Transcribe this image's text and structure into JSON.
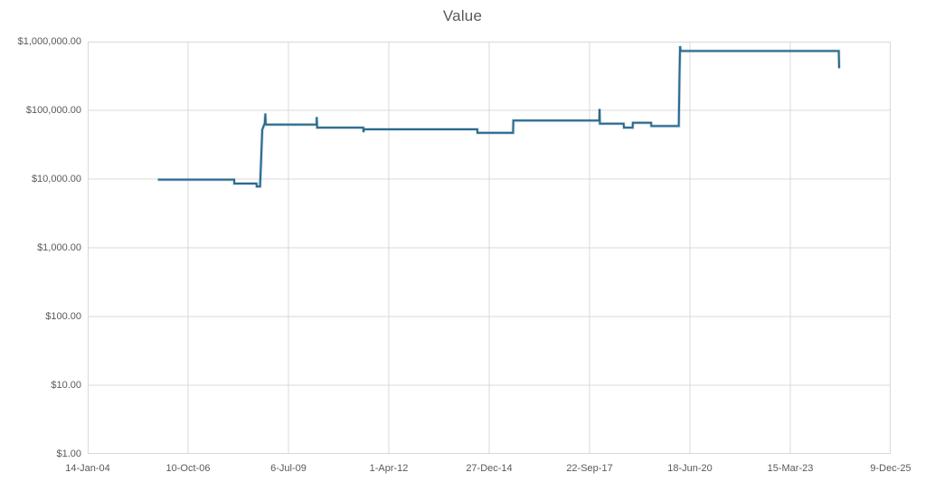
{
  "title": "Value",
  "colors": {
    "line": "#2b6a8d",
    "line_halo": "#8fb4c9",
    "grid": "#d9d9d9",
    "plot_border": "#d9d9d9",
    "text": "#595959",
    "background": "#ffffff"
  },
  "chart_data": {
    "type": "line",
    "title": "Value",
    "xlabel": "",
    "ylabel": "",
    "legend": "none",
    "grid": true,
    "y_scale": "log10",
    "ylim": [
      1,
      1000000
    ],
    "y_ticks_top_to_bottom": [
      "$1,000,000.00",
      "$100,000.00",
      "$10,000.00",
      "$1,000.00",
      "$100.00",
      "$10.00",
      "$1.00"
    ],
    "y_tick_values_top_to_bottom": [
      1000000,
      100000,
      10000,
      1000,
      100,
      10,
      1
    ],
    "x_axis_min": "2004-01-14",
    "x_axis_max": "2025-12-09",
    "x_ticks": [
      "14-Jan-04",
      "10-Oct-06",
      "6-Jul-09",
      "1-Apr-12",
      "27-Dec-14",
      "22-Sep-17",
      "18-Jun-20",
      "15-Mar-23",
      "9-Dec-25"
    ],
    "series": [
      {
        "name": "Value",
        "points": [
          [
            "2005-12-13",
            9800
          ],
          [
            "2008-01-12",
            9800
          ],
          [
            "2008-01-14",
            8600
          ],
          [
            "2008-08-22",
            8600
          ],
          [
            "2008-08-24",
            7800
          ],
          [
            "2008-09-26",
            7800
          ],
          [
            "2008-10-08",
            21000
          ],
          [
            "2008-10-18",
            52000
          ],
          [
            "2008-11-12",
            65000
          ],
          [
            "2008-11-18",
            90000
          ],
          [
            "2008-11-22",
            62000
          ],
          [
            "2010-04-12",
            62000
          ],
          [
            "2010-04-14",
            80000
          ],
          [
            "2010-04-18",
            56000
          ],
          [
            "2011-07-22",
            56000
          ],
          [
            "2011-07-24",
            48000
          ],
          [
            "2011-07-28",
            53000
          ],
          [
            "2014-08-30",
            53000
          ],
          [
            "2014-09-02",
            47000
          ],
          [
            "2015-08-22",
            47000
          ],
          [
            "2015-08-25",
            71000
          ],
          [
            "2017-12-28",
            71000
          ],
          [
            "2017-12-31",
            105000
          ],
          [
            "2018-01-03",
            64000
          ],
          [
            "2018-08-28",
            64000
          ],
          [
            "2018-08-31",
            56000
          ],
          [
            "2018-11-25",
            56000
          ],
          [
            "2018-11-28",
            66000
          ],
          [
            "2019-05-28",
            66000
          ],
          [
            "2019-05-31",
            59000
          ],
          [
            "2020-02-28",
            59000
          ],
          [
            "2020-03-06",
            300000
          ],
          [
            "2020-03-12",
            860000
          ],
          [
            "2020-03-18",
            730000
          ],
          [
            "2024-07-10",
            730000
          ],
          [
            "2024-07-14",
            410000
          ]
        ]
      }
    ]
  }
}
